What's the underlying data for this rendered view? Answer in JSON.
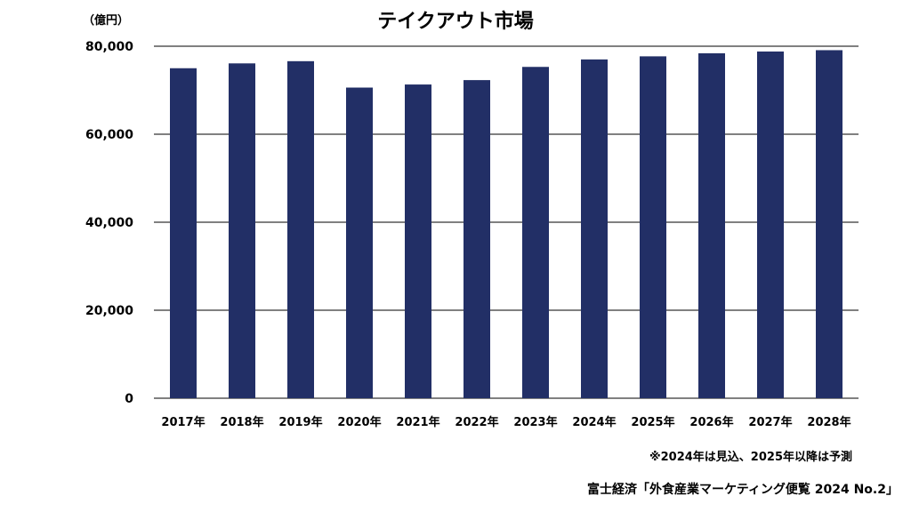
{
  "chart_data": {
    "type": "bar",
    "title": "テイクアウト市場",
    "unit_label": "（億円）",
    "categories": [
      "2017年",
      "2018年",
      "2019年",
      "2020年",
      "2021年",
      "2022年",
      "2023年",
      "2024年",
      "2025年",
      "2026年",
      "2027年",
      "2028年"
    ],
    "values": [
      75000,
      76100,
      76600,
      70600,
      71300,
      72300,
      75300,
      77000,
      77700,
      78400,
      78800,
      79100
    ],
    "ylim": [
      0,
      80000
    ],
    "yticks": [
      "0",
      "20,000",
      "40,000",
      "60,000",
      "80,000"
    ],
    "ytick_values": [
      0,
      20000,
      40000,
      60000,
      80000
    ],
    "grid": true,
    "bar_color": "#222f66",
    "note": "※2024年は見込、2025年以降は予測",
    "source": "富士経済「外食産業マーケティング便覧 2024 No.2」"
  }
}
